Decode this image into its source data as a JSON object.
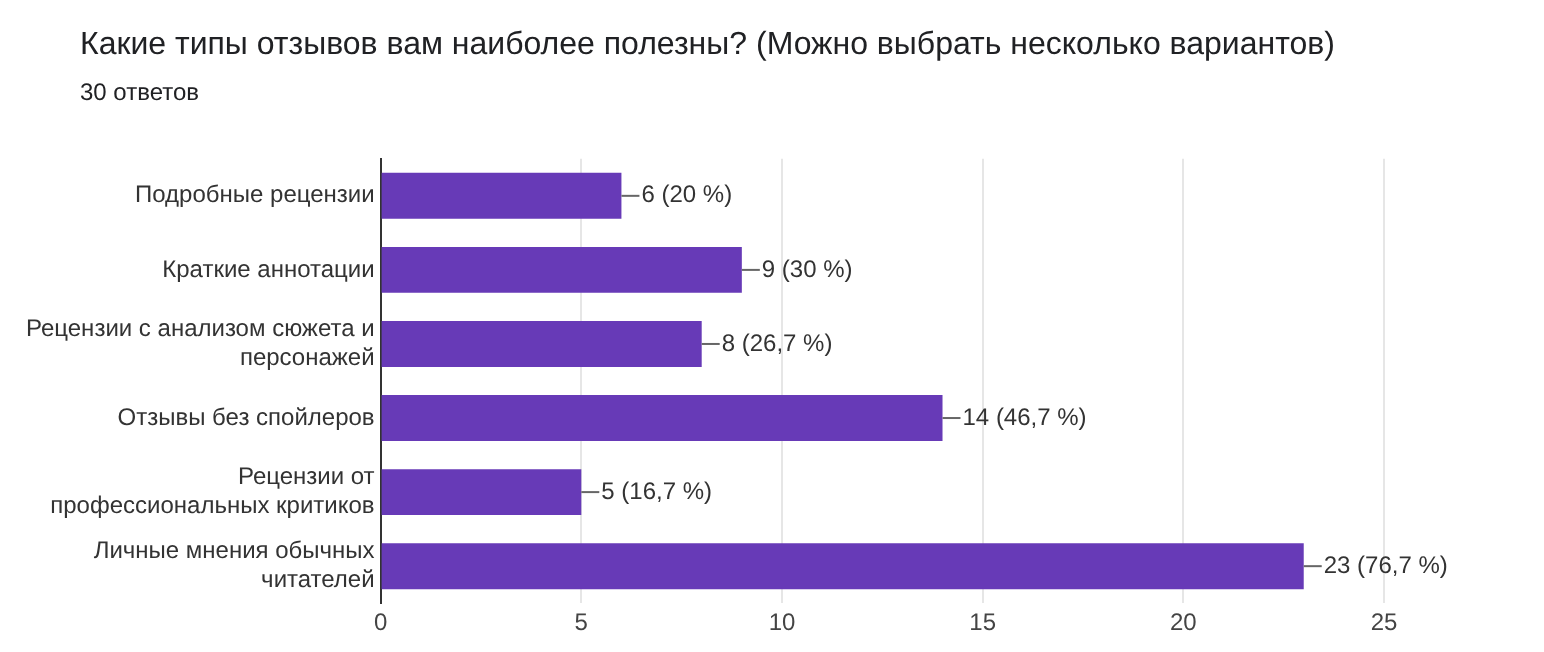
{
  "chart_data": {
    "type": "bar",
    "orientation": "horizontal",
    "title": "Какие типы отзывов вам наиболее полезны? (Можно выбрать несколько вариантов)",
    "subtitle": "30 ответов",
    "categories": [
      "Подробные рецензии",
      "Краткие аннотации",
      "Рецензии с анализом сюжета и персонажей",
      "Отзывы без спойлеров",
      "Рецензии от профессиональных критиков",
      "Личные мнения обычных читателей"
    ],
    "values": [
      6,
      9,
      8,
      14,
      5,
      23
    ],
    "value_labels": [
      "6 (20 %)",
      "9 (30 %)",
      "8 (26,7 %)",
      "14 (46,7 %)",
      "5 (16,7 %)",
      "23 (76,7 %)"
    ],
    "color": "#673ab7",
    "xlim": [
      0,
      25
    ],
    "xticks": [
      0,
      5,
      10,
      15,
      20,
      25
    ],
    "grid": "x"
  }
}
